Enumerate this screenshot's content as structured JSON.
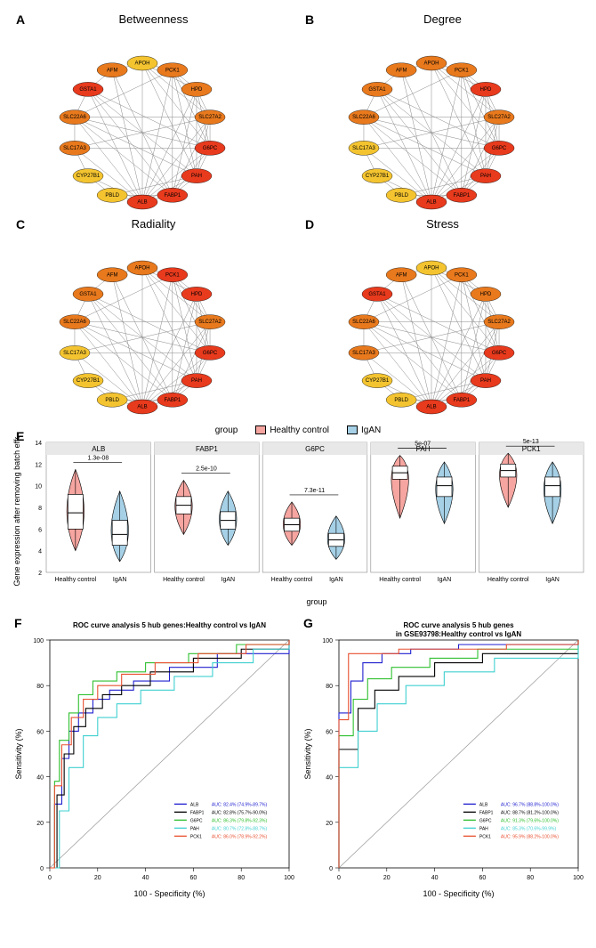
{
  "networks": {
    "genes": [
      "APOH",
      "PCK1",
      "HPD",
      "SLC27A2",
      "G6PC",
      "PAH",
      "FABP1",
      "ALB",
      "PBLD",
      "CYP27B1",
      "SLC17A3",
      "SLC22A6",
      "GSTA1",
      "AFM"
    ],
    "panels": [
      {
        "label": "A",
        "title": "Betweenness",
        "colors": [
          "#f4c430",
          "#e8791d",
          "#e8791d",
          "#e8791d",
          "#e83a1d",
          "#e83a1d",
          "#e83a1d",
          "#e83a1d",
          "#f4c430",
          "#f4c430",
          "#e8791d",
          "#e8791d",
          "#e83a1d",
          "#e8791d"
        ]
      },
      {
        "label": "B",
        "title": "Degree",
        "colors": [
          "#e8791d",
          "#e8791d",
          "#e83a1d",
          "#e8791d",
          "#e83a1d",
          "#e83a1d",
          "#e83a1d",
          "#e83a1d",
          "#f4c430",
          "#f4c430",
          "#f4c430",
          "#e8791d",
          "#e8791d",
          "#e8791d"
        ]
      },
      {
        "label": "C",
        "title": "Radiality",
        "colors": [
          "#e8791d",
          "#e83a1d",
          "#e83a1d",
          "#e8791d",
          "#e83a1d",
          "#e83a1d",
          "#e83a1d",
          "#e83a1d",
          "#f4c430",
          "#f4c430",
          "#f4c430",
          "#e8791d",
          "#e8791d",
          "#e8791d"
        ]
      },
      {
        "label": "D",
        "title": "Stress",
        "colors": [
          "#f4c430",
          "#e8791d",
          "#e8791d",
          "#e8791d",
          "#e83a1d",
          "#e83a1d",
          "#e83a1d",
          "#e83a1d",
          "#f4c430",
          "#f4c430",
          "#e8791d",
          "#e8791d",
          "#e83a1d",
          "#e8791d"
        ]
      }
    ],
    "edges": [
      [
        0,
        1
      ],
      [
        0,
        2
      ],
      [
        0,
        3
      ],
      [
        0,
        4
      ],
      [
        0,
        5
      ],
      [
        0,
        7
      ],
      [
        0,
        13
      ],
      [
        1,
        2
      ],
      [
        1,
        3
      ],
      [
        1,
        4
      ],
      [
        1,
        5
      ],
      [
        1,
        6
      ],
      [
        1,
        7
      ],
      [
        1,
        11
      ],
      [
        2,
        3
      ],
      [
        2,
        4
      ],
      [
        2,
        5
      ],
      [
        2,
        6
      ],
      [
        2,
        7
      ],
      [
        3,
        4
      ],
      [
        3,
        5
      ],
      [
        3,
        6
      ],
      [
        3,
        7
      ],
      [
        3,
        10
      ],
      [
        3,
        11
      ],
      [
        4,
        5
      ],
      [
        4,
        6
      ],
      [
        4,
        7
      ],
      [
        4,
        10
      ],
      [
        4,
        11
      ],
      [
        4,
        12
      ],
      [
        5,
        6
      ],
      [
        5,
        7
      ],
      [
        5,
        8
      ],
      [
        5,
        11
      ],
      [
        5,
        12
      ],
      [
        6,
        7
      ],
      [
        6,
        8
      ],
      [
        6,
        11
      ],
      [
        6,
        12
      ],
      [
        6,
        13
      ],
      [
        7,
        8
      ],
      [
        7,
        9
      ],
      [
        7,
        10
      ],
      [
        7,
        11
      ],
      [
        7,
        12
      ],
      [
        7,
        13
      ],
      [
        8,
        9
      ],
      [
        9,
        10
      ],
      [
        10,
        11
      ],
      [
        11,
        12
      ],
      [
        12,
        13
      ]
    ]
  },
  "violin": {
    "label": "E",
    "group_title": "group",
    "groups": [
      {
        "name": "Healthy control",
        "color": "#f6a5a0"
      },
      {
        "name": "IgAN",
        "color": "#a6d0e6"
      }
    ],
    "ylabel": "Gene expression after removing batch effect",
    "xlabel": "group",
    "ylim": [
      2,
      14
    ],
    "panels": [
      {
        "gene": "ALB",
        "pval": "1.3e-08",
        "hc": {
          "median": 7.5,
          "q1": 6.0,
          "q3": 9.2,
          "min": 4.0,
          "max": 11.5
        },
        "igan": {
          "median": 5.5,
          "q1": 4.5,
          "q3": 6.8,
          "min": 3.0,
          "max": 9.5
        }
      },
      {
        "gene": "FABP1",
        "pval": "2.5e-10",
        "hc": {
          "median": 8.2,
          "q1": 7.4,
          "q3": 9.0,
          "min": 5.5,
          "max": 10.5
        },
        "igan": {
          "median": 6.8,
          "q1": 6.0,
          "q3": 7.6,
          "min": 4.5,
          "max": 9.5
        }
      },
      {
        "gene": "G6PC",
        "pval": "7.3e-11",
        "hc": {
          "median": 6.4,
          "q1": 5.8,
          "q3": 7.0,
          "min": 4.5,
          "max": 8.5
        },
        "igan": {
          "median": 5.0,
          "q1": 4.4,
          "q3": 5.6,
          "min": 3.2,
          "max": 7.2
        }
      },
      {
        "gene": "PAH",
        "pval": "5e-07",
        "hc": {
          "median": 11.2,
          "q1": 10.6,
          "q3": 11.8,
          "min": 7.0,
          "max": 12.8
        },
        "igan": {
          "median": 10.0,
          "q1": 9.0,
          "q3": 10.8,
          "min": 6.5,
          "max": 12.2
        }
      },
      {
        "gene": "PCK1",
        "pval": "5e-13",
        "hc": {
          "median": 11.4,
          "q1": 10.8,
          "q3": 12.0,
          "min": 8.0,
          "max": 13.0
        },
        "igan": {
          "median": 10.0,
          "q1": 9.0,
          "q3": 10.8,
          "min": 6.5,
          "max": 12.2
        }
      }
    ]
  },
  "roc": [
    {
      "label": "F",
      "title": "ROC curve analysis 5 hub genes:Healthy control vs IgAN",
      "xlabel": "100 - Specificity (%)",
      "ylabel": "Sensitivity (%)",
      "curves": [
        {
          "name": "ALB",
          "auc": "AUC: 82.4% (74.9%-89.7%)",
          "color": "#2020d0",
          "pts": [
            [
              0,
              0
            ],
            [
              2,
              28
            ],
            [
              5,
              48
            ],
            [
              8,
              60
            ],
            [
              12,
              68
            ],
            [
              18,
              74
            ],
            [
              25,
              78
            ],
            [
              35,
              82
            ],
            [
              50,
              88
            ],
            [
              70,
              94
            ],
            [
              100,
              100
            ]
          ]
        },
        {
          "name": "FABP1",
          "auc": "AUC: 82.8% (75.7%-90.0%)",
          "color": "#000000",
          "pts": [
            [
              0,
              0
            ],
            [
              3,
              32
            ],
            [
              6,
              50
            ],
            [
              10,
              62
            ],
            [
              15,
              70
            ],
            [
              22,
              76
            ],
            [
              30,
              80
            ],
            [
              42,
              86
            ],
            [
              60,
              92
            ],
            [
              80,
              96
            ],
            [
              100,
              100
            ]
          ]
        },
        {
          "name": "G6PC",
          "auc": "AUC: 86.3% (79.8%-92.3%)",
          "color": "#30c030",
          "pts": [
            [
              0,
              0
            ],
            [
              2,
              38
            ],
            [
              4,
              56
            ],
            [
              8,
              68
            ],
            [
              12,
              76
            ],
            [
              18,
              82
            ],
            [
              28,
              86
            ],
            [
              40,
              90
            ],
            [
              58,
              94
            ],
            [
              78,
              98
            ],
            [
              100,
              100
            ]
          ]
        },
        {
          "name": "PAH",
          "auc": "AUC: 80.7% (72.8%-88.7%)",
          "color": "#40d0d0",
          "pts": [
            [
              0,
              0
            ],
            [
              4,
              25
            ],
            [
              8,
              44
            ],
            [
              14,
              58
            ],
            [
              20,
              66
            ],
            [
              28,
              72
            ],
            [
              38,
              78
            ],
            [
              52,
              84
            ],
            [
              68,
              90
            ],
            [
              85,
              96
            ],
            [
              100,
              100
            ]
          ]
        },
        {
          "name": "PCK1",
          "auc": "AUC: 86.0% (78.9%-92.2%)",
          "color": "#e85030",
          "pts": [
            [
              0,
              0
            ],
            [
              2,
              36
            ],
            [
              5,
              54
            ],
            [
              9,
              66
            ],
            [
              14,
              74
            ],
            [
              20,
              80
            ],
            [
              30,
              85
            ],
            [
              44,
              90
            ],
            [
              62,
              94
            ],
            [
              82,
              98
            ],
            [
              100,
              100
            ]
          ]
        }
      ]
    },
    {
      "label": "G",
      "title": "ROC curve analysis 5 hub genes\nin GSE93798:Healthy control vs IgAN",
      "xlabel": "100 - Specificity (%)",
      "ylabel": "Sensitivity (%)",
      "curves": [
        {
          "name": "ALB",
          "auc": "AUC: 96.7% (88.8%-100.0%)",
          "color": "#2020d0",
          "pts": [
            [
              0,
              0
            ],
            [
              0,
              68
            ],
            [
              5,
              82
            ],
            [
              10,
              90
            ],
            [
              18,
              94
            ],
            [
              30,
              96
            ],
            [
              50,
              98
            ],
            [
              100,
              100
            ]
          ]
        },
        {
          "name": "FABP1",
          "auc": "AUC: 88.7% (81.2%-100.0%)",
          "color": "#000000",
          "pts": [
            [
              0,
              0
            ],
            [
              0,
              52
            ],
            [
              8,
              70
            ],
            [
              15,
              78
            ],
            [
              25,
              84
            ],
            [
              40,
              90
            ],
            [
              60,
              94
            ],
            [
              100,
              100
            ]
          ]
        },
        {
          "name": "G6PC",
          "auc": "AUC: 91.3% (79.6%-100.0%)",
          "color": "#30c030",
          "pts": [
            [
              0,
              0
            ],
            [
              0,
              58
            ],
            [
              6,
              74
            ],
            [
              12,
              83
            ],
            [
              22,
              88
            ],
            [
              38,
              92
            ],
            [
              58,
              96
            ],
            [
              100,
              100
            ]
          ]
        },
        {
          "name": "PAH",
          "auc": "AUC: 85.3% (70.6%-99.9%)",
          "color": "#40d0d0",
          "pts": [
            [
              0,
              0
            ],
            [
              0,
              44
            ],
            [
              8,
              60
            ],
            [
              16,
              72
            ],
            [
              28,
              80
            ],
            [
              44,
              86
            ],
            [
              65,
              92
            ],
            [
              100,
              100
            ]
          ]
        },
        {
          "name": "PCK1",
          "auc": "AUC: 95.9% (88.2%-100.0%)",
          "color": "#e85030",
          "pts": [
            [
              0,
              0
            ],
            [
              0,
              65
            ],
            [
              4,
              94
            ],
            [
              12,
              94
            ],
            [
              25,
              96
            ],
            [
              45,
              96
            ],
            [
              70,
              98
            ],
            [
              100,
              100
            ]
          ]
        }
      ]
    }
  ]
}
